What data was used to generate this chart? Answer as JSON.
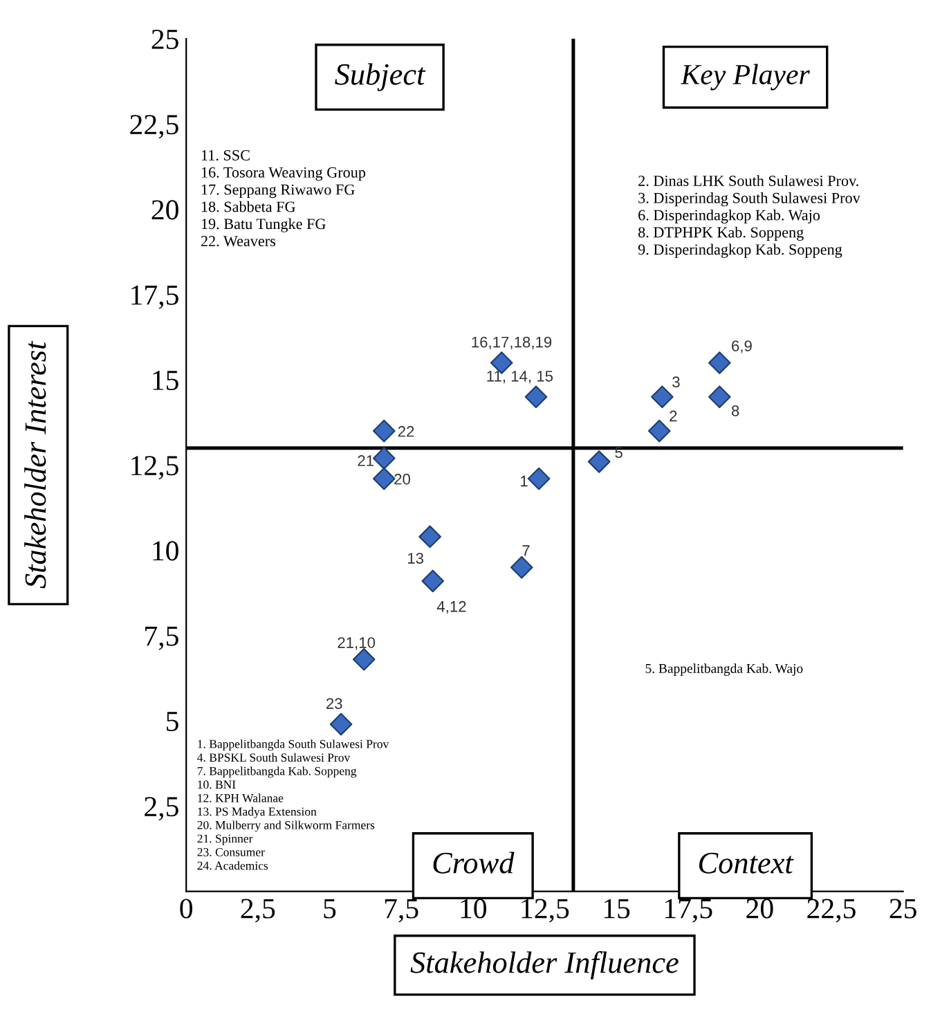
{
  "chart_data": {
    "type": "scatter",
    "xlabel": "Stakeholder Influence",
    "ylabel": "Stakeholder Interest",
    "x": [
      11.0,
      12.2,
      6.9,
      6.9,
      6.9,
      12.3,
      8.5,
      11.7,
      8.6,
      6.2,
      5.4,
      14.4,
      16.5,
      16.6,
      18.6,
      18.6
    ],
    "series": [
      {
        "color": "#3a6bc0",
        "values": [
          15.5,
          14.5,
          13.5,
          12.7,
          12.1,
          12.1,
          10.4,
          9.5,
          9.1,
          6.8,
          4.9,
          12.6,
          13.5,
          14.5,
          14.5,
          15.5
        ]
      }
    ],
    "marker": "diamond",
    "xlim": [
      0,
      25
    ],
    "ylim": [
      0,
      25
    ],
    "xticks": [
      0,
      {
        "value": 2.5,
        "label": "2,5"
      },
      5,
      {
        "value": 7.5,
        "label": "7,5"
      },
      10,
      {
        "value": 12.5,
        "label": "12,5"
      },
      15,
      {
        "value": 17.5,
        "label": "17,5"
      },
      20,
      {
        "value": 22.5,
        "label": "22,5"
      },
      25
    ],
    "yticks": [
      {
        "value": 2.5,
        "label": "2,5"
      },
      5,
      {
        "value": 7.5,
        "label": "7,5"
      },
      10,
      {
        "value": 12.5,
        "label": "12,5"
      },
      15,
      {
        "value": 17.5,
        "label": "17,5"
      },
      20,
      {
        "value": 22.5,
        "label": "22,5"
      },
      25
    ],
    "ref_lines": [
      {
        "axis": "x",
        "value": 13.5,
        "color": "#000000"
      },
      {
        "axis": "y",
        "value": 13,
        "color": "#000000"
      }
    ],
    "grid": false,
    "legend": false,
    "annotations": [
      "Subject",
      "Key Player",
      "Crowd",
      "Context",
      "11. SSC\n16. Tosora Weaving Group\n17. Seppang Riwawo FG\n18. Sabbeta FG\n19. Batu Tungke FG\n22. Weavers",
      "2. Dinas LHK South Sulawesi Prov.\n3. Disperindag South Sulawesi Prov\n6. Disperindagkop Kab. Wajo\n8. DTPHPK Kab. Soppeng\n9. Disperindagkop Kab. Soppeng",
      "1. Bappelitbangda South Sulawesi Prov\n4. BPSKL South Sulawesi Prov\n7. Bappelitbangda Kab. Soppeng\n10. BNI\n12. KPH Walanae\n13. PS Madya Extension\n20. Mulberry and Silkworm Farmers\n21. Spinner\n23. Consumer\n24. Academics",
      "5. Bappelitbangda Kab. Wajo",
      {
        "text": "16,17,18,19",
        "x": 11.0,
        "y": 15.5
      },
      {
        "text": "11, 14, 15",
        "x": 12.2,
        "y": 14.5
      },
      {
        "text": "22",
        "x": 6.9,
        "y": 13.5
      },
      {
        "text": "21",
        "x": 6.9,
        "y": 12.7
      },
      {
        "text": "20",
        "x": 6.9,
        "y": 12.1
      },
      {
        "text": "1",
        "x": 12.3,
        "y": 12.1
      },
      {
        "text": "13",
        "x": 8.5,
        "y": 10.4
      },
      {
        "text": "7",
        "x": 11.7,
        "y": 9.5
      },
      {
        "text": "4,12",
        "x": 8.6,
        "y": 9.1
      },
      {
        "text": "21,10",
        "x": 6.2,
        "y": 6.8
      },
      {
        "text": "23",
        "x": 5.4,
        "y": 4.9
      },
      {
        "text": "5",
        "x": 14.4,
        "y": 12.6
      },
      {
        "text": "2",
        "x": 16.5,
        "y": 13.5
      },
      {
        "text": "3",
        "x": 16.6,
        "y": 14.5
      },
      {
        "text": "8",
        "x": 18.6,
        "y": 14.5
      },
      {
        "text": "6,9",
        "x": 18.6,
        "y": 15.5
      }
    ]
  }
}
